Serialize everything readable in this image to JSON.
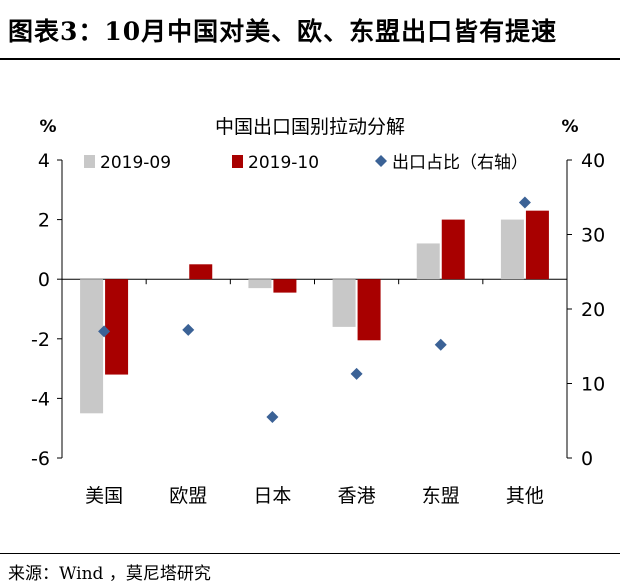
{
  "header": {
    "title": "图表3：10月中国对美、欧、东盟出口皆有提速"
  },
  "footer": {
    "source": "来源：Wind ，莫尼塔研究"
  },
  "chart_data": {
    "type": "bar",
    "title": "中国出口国别拉动分解",
    "ylabel_left": "%",
    "ylabel_right": "%",
    "categories": [
      "美国",
      "欧盟",
      "日本",
      "香港",
      "东盟",
      "其他"
    ],
    "series": [
      {
        "name": "2019-09",
        "type": "bar",
        "axis": "left",
        "color": "#c8c8c8",
        "values": [
          -4.5,
          0,
          -0.3,
          -1.6,
          1.2,
          2.0
        ]
      },
      {
        "name": "2019-10",
        "type": "bar",
        "axis": "left",
        "color": "#a80000",
        "values": [
          -3.2,
          0.5,
          -0.45,
          -2.05,
          2.0,
          2.3
        ]
      },
      {
        "name": "出口占比（右轴）",
        "type": "scatter",
        "axis": "right",
        "color": "#3b6296",
        "values": [
          17.0,
          17.2,
          5.5,
          11.3,
          15.2,
          34.3
        ]
      }
    ],
    "ylim_left": [
      -6,
      4
    ],
    "yticks_left": [
      4,
      2,
      0,
      -2,
      -4,
      -6
    ],
    "ylim_right": [
      0,
      40
    ],
    "yticks_right": [
      40,
      30,
      20,
      10,
      0
    ],
    "legend_position": "top",
    "grid": false
  }
}
